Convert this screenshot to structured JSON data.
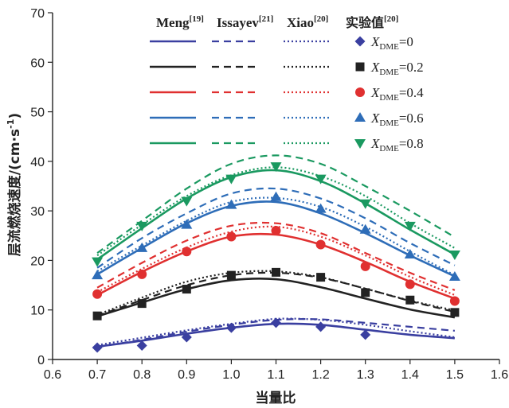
{
  "chart_data": {
    "type": "line",
    "xlabel": "当量比",
    "ylabel": "层流燃烧速度/(cm·s",
    "ylabel_sup": "-1",
    "ylabel_tail": ")",
    "xlim": [
      0.6,
      1.6
    ],
    "ylim": [
      0,
      70
    ],
    "xticks": [
      "0.6",
      "0.7",
      "0.8",
      "0.9",
      "1.0",
      "1.1",
      "1.2",
      "1.3",
      "1.4",
      "1.5",
      "1.6"
    ],
    "yticks": [
      "0",
      "10",
      "20",
      "30",
      "40",
      "50",
      "60",
      "70"
    ],
    "grid": false,
    "legend_headers": [
      {
        "label": "Meng",
        "ref": "[19]",
        "style": "solid"
      },
      {
        "label": "Issayev",
        "ref": "[21]",
        "style": "dashed"
      },
      {
        "label": "Xiao",
        "ref": "[20]",
        "style": "dotted"
      },
      {
        "label": "实验值",
        "ref": "[20]",
        "style": "marker"
      }
    ],
    "legend_var": "X",
    "legend_sub": "DME",
    "x": [
      0.7,
      0.8,
      0.9,
      1.0,
      1.1,
      1.2,
      1.3,
      1.4,
      1.5
    ],
    "groups": [
      {
        "value_label": "=0",
        "color": "#3a3fa0",
        "marker": "diamond",
        "meng": [
          2.6,
          3.8,
          5.2,
          6.4,
          7.2,
          7.0,
          6.0,
          5.0,
          4.3
        ],
        "issayev": [
          2.5,
          4.0,
          5.6,
          7.0,
          8.0,
          8.1,
          7.4,
          6.6,
          5.8
        ],
        "xiao": [
          2.9,
          4.4,
          5.9,
          7.2,
          8.2,
          8.0,
          7.0,
          5.7,
          4.5
        ],
        "experiment": [
          2.4,
          2.8,
          4.5,
          6.4,
          7.4,
          6.6,
          5.0,
          null,
          null
        ]
      },
      {
        "value_label": "=0.2",
        "color": "#222222",
        "marker": "square",
        "meng": [
          8.7,
          11.5,
          14.2,
          16.0,
          16.2,
          14.6,
          12.3,
          10.1,
          8.5
        ],
        "issayev": [
          8.8,
          12.0,
          15.0,
          17.0,
          17.5,
          16.5,
          14.3,
          11.8,
          9.6
        ],
        "xiao": [
          9.0,
          12.5,
          15.7,
          17.5,
          17.8,
          16.6,
          14.3,
          11.9,
          9.9
        ],
        "experiment": [
          8.8,
          11.3,
          14.2,
          17.0,
          17.6,
          16.6,
          13.5,
          12.0,
          9.5
        ]
      },
      {
        "value_label": "=0.4",
        "color": "#e03030",
        "marker": "circle",
        "meng": [
          13.0,
          17.7,
          21.8,
          24.8,
          25.2,
          23.2,
          19.7,
          15.7,
          12.3
        ],
        "issayev": [
          14.5,
          19.5,
          24.0,
          27.0,
          27.5,
          25.5,
          21.5,
          17.5,
          14.0
        ],
        "xiao": [
          13.6,
          18.3,
          22.6,
          25.8,
          26.8,
          24.8,
          21.0,
          16.7,
          13.0
        ],
        "experiment": [
          13.2,
          17.2,
          21.8,
          24.8,
          26.0,
          23.2,
          18.8,
          15.2,
          11.8
        ]
      },
      {
        "value_label": "=0.6",
        "color": "#2e6db8",
        "marker": "triangle-up",
        "meng": [
          17.2,
          22.5,
          27.5,
          31.0,
          31.8,
          29.5,
          25.5,
          21.0,
          16.8
        ],
        "issayev": [
          18.5,
          24.5,
          29.5,
          33.5,
          34.5,
          32.5,
          28.5,
          23.5,
          19.0
        ],
        "xiao": [
          17.8,
          23.0,
          28.0,
          31.8,
          32.6,
          30.8,
          26.8,
          21.8,
          17.0
        ],
        "experiment": [
          17.0,
          22.5,
          27.2,
          31.2,
          32.8,
          30.4,
          26.2,
          21.2,
          16.7
        ]
      },
      {
        "value_label": "=0.8",
        "color": "#1a9960",
        "marker": "triangle-down",
        "meng": [
          20.2,
          26.5,
          32.5,
          36.8,
          38.2,
          36.0,
          31.5,
          26.2,
          21.2
        ],
        "issayev": [
          21.5,
          28.0,
          34.5,
          39.5,
          41.2,
          39.5,
          35.0,
          30.0,
          24.7
        ],
        "xiao": [
          21.0,
          27.2,
          33.0,
          37.2,
          38.8,
          37.0,
          33.0,
          27.5,
          22.5
        ],
        "experiment": [
          19.8,
          27.0,
          32.0,
          36.5,
          39.0,
          36.5,
          31.5,
          27.0,
          21.2
        ]
      }
    ]
  }
}
